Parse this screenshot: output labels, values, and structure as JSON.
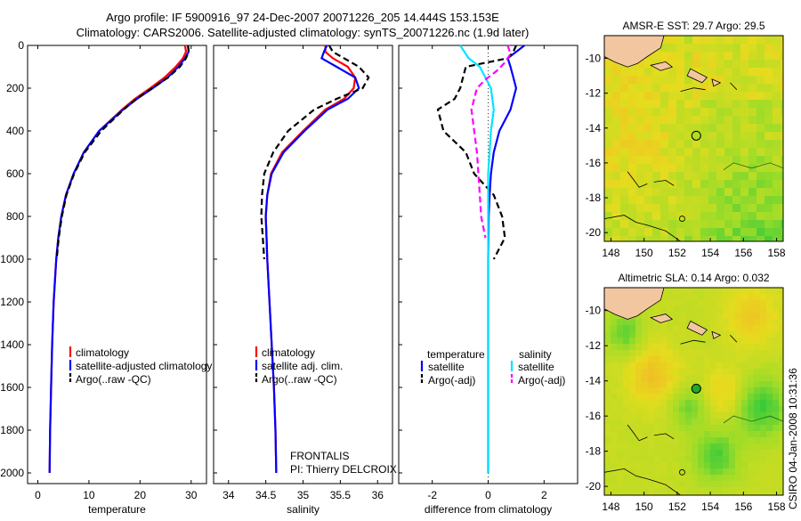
{
  "header": {
    "line1": "Argo profile: IF 5900916_97 24-Dec-2007 20071226_205 14.444S 153.153E",
    "line2": "Climatology: CARS2006. Satellite-adjusted climatology: synTS_20071226.nc (1.9d later)"
  },
  "footer_right": "CSIRO 04-Jan-2008 10:31:36",
  "colors": {
    "clim": "#ff0000",
    "sat": "#0000ff",
    "argo": "#000000",
    "sal_sat": "#00e5ff",
    "sal_argo": "#ff00ff"
  },
  "chart_data": [
    {
      "id": "temperature",
      "type": "line",
      "title": "",
      "xlabel": "temperature",
      "ylabel": "",
      "xlim": [
        -2,
        33
      ],
      "ylim": [
        0,
        2050
      ],
      "xticks": [
        "0",
        "10",
        "20",
        "30"
      ],
      "xtick_values": [
        0,
        10,
        20,
        30
      ],
      "yticks": [
        "0",
        "200",
        "400",
        "600",
        "800",
        "1000",
        "1200",
        "1400",
        "1600",
        "1800",
        "2000"
      ],
      "ytick_values": [
        0,
        200,
        400,
        600,
        800,
        1000,
        1200,
        1400,
        1600,
        1800,
        2000
      ],
      "legend": [
        "climatology",
        "satellite-adjusted climatology",
        "Argo(..raw -QC)"
      ],
      "series": [
        {
          "name": "climatology",
          "color": "#ff0000",
          "dash": "",
          "depth": [
            0,
            30,
            60,
            100,
            150,
            200,
            250,
            300,
            400,
            500,
            600,
            700,
            800,
            900,
            1000,
            1200,
            1400,
            1600,
            1800,
            2000
          ],
          "values": [
            28.8,
            29.0,
            28.4,
            27.0,
            24.8,
            22.0,
            19.0,
            16.5,
            12.0,
            9.0,
            7.0,
            5.5,
            4.6,
            4.0,
            3.6,
            3.1,
            2.8,
            2.6,
            2.4,
            2.3
          ]
        },
        {
          "name": "satellite-adjusted climatology",
          "color": "#0000ff",
          "dash": "",
          "depth": [
            0,
            30,
            60,
            100,
            150,
            200,
            250,
            300,
            400,
            500,
            600,
            700,
            800,
            900,
            1000,
            1200,
            1400,
            1600,
            1800,
            2000
          ],
          "values": [
            29.4,
            29.5,
            28.8,
            27.5,
            25.4,
            22.5,
            19.4,
            16.7,
            12.0,
            9.0,
            7.0,
            5.5,
            4.6,
            4.0,
            3.6,
            3.1,
            2.8,
            2.6,
            2.4,
            2.3
          ]
        },
        {
          "name": "Argo(..raw -QC)",
          "color": "#000000",
          "dash": "7,4",
          "depth": [
            0,
            30,
            60,
            100,
            150,
            200,
            250,
            300,
            400,
            500,
            600,
            700,
            800,
            900,
            1000
          ],
          "values": [
            29.4,
            29.5,
            29.0,
            27.8,
            25.5,
            22.4,
            19.3,
            16.8,
            12.4,
            9.2,
            7.1,
            5.6,
            4.7,
            4.1,
            3.7
          ]
        }
      ]
    },
    {
      "id": "salinity",
      "type": "line",
      "title": "",
      "xlabel": "salinity",
      "ylabel": "",
      "xlim": [
        33.8,
        36.2
      ],
      "ylim": [
        0,
        2050
      ],
      "xticks": [
        "34",
        "34.5",
        "35",
        "35.5",
        "36"
      ],
      "xtick_values": [
        34,
        34.5,
        35,
        35.5,
        36
      ],
      "yticks": [],
      "ytick_values": [],
      "legend": [
        "climatology",
        "satellite adj. clim.",
        "Argo(..raw -QC)"
      ],
      "annotation": [
        "FRONTALIS",
        "PI: Thierry DELCROIX"
      ],
      "series": [
        {
          "name": "climatology",
          "color": "#ff0000",
          "dash": "",
          "depth": [
            0,
            30,
            60,
            100,
            150,
            200,
            250,
            300,
            400,
            500,
            600,
            700,
            800,
            900,
            1000,
            1200,
            1400,
            1600,
            1800,
            2000
          ],
          "values": [
            35.3,
            35.3,
            35.4,
            35.6,
            35.7,
            35.68,
            35.55,
            35.3,
            35.0,
            34.72,
            34.57,
            34.52,
            34.5,
            34.51,
            34.52,
            34.55,
            34.58,
            34.61,
            34.63,
            34.64
          ]
        },
        {
          "name": "satellite adj. clim.",
          "color": "#0000ff",
          "dash": "",
          "depth": [
            0,
            30,
            60,
            100,
            150,
            200,
            250,
            300,
            400,
            500,
            600,
            700,
            800,
            900,
            1000,
            1200,
            1400,
            1600,
            1800,
            2000
          ],
          "values": [
            35.32,
            35.28,
            35.25,
            35.45,
            35.7,
            35.75,
            35.6,
            35.33,
            35.02,
            34.74,
            34.58,
            34.52,
            34.5,
            34.51,
            34.52,
            34.55,
            34.58,
            34.61,
            34.63,
            34.64
          ]
        },
        {
          "name": "Argo(..raw -QC)",
          "color": "#000000",
          "dash": "7,4",
          "depth": [
            0,
            30,
            60,
            100,
            150,
            200,
            250,
            300,
            400,
            500,
            600,
            700,
            800,
            900,
            1000
          ],
          "values": [
            35.35,
            35.4,
            35.55,
            35.75,
            35.88,
            35.8,
            35.45,
            35.15,
            34.8,
            34.6,
            34.48,
            34.45,
            34.44,
            34.46,
            34.48
          ]
        }
      ]
    },
    {
      "id": "difference",
      "type": "line",
      "title": "",
      "xlabel": "difference from climatology",
      "ylabel": "",
      "xlim": [
        -3.2,
        3.2
      ],
      "ylim": [
        0,
        2050
      ],
      "xticks": [
        "-2",
        "0",
        "2"
      ],
      "xtick_values": [
        -2,
        0,
        2
      ],
      "yticks": [],
      "ytick_values": [],
      "legend_groups": [
        "temperature",
        "salinity"
      ],
      "legend": [
        "satellite",
        "Argo(-adj)",
        "satellite",
        "Argo(-adj)"
      ],
      "series": [
        {
          "name": "temperature satellite",
          "color": "#0000ff",
          "dash": "",
          "depth": [
            0,
            30,
            60,
            100,
            150,
            200,
            300,
            400,
            500,
            600,
            700,
            800,
            1000,
            1500,
            2000
          ],
          "values": [
            1.3,
            1.0,
            0.7,
            0.8,
            0.9,
            1.0,
            0.8,
            0.4,
            0.2,
            0.1,
            0.05,
            0.02,
            0.0,
            0.0,
            0.0
          ]
        },
        {
          "name": "temperature Argo(-adj)",
          "color": "#000000",
          "dash": "7,4",
          "depth": [
            0,
            30,
            60,
            100,
            150,
            200,
            250,
            300,
            400,
            450,
            500,
            600,
            700,
            800,
            900,
            1000
          ],
          "values": [
            1.0,
            0.9,
            0.7,
            -0.8,
            -0.9,
            -1.0,
            -1.2,
            -1.8,
            -1.6,
            -1.2,
            -0.8,
            -0.5,
            0.2,
            0.5,
            0.6,
            0.2
          ]
        },
        {
          "name": "salinity satellite",
          "color": "#00e5ff",
          "dash": "",
          "depth": [
            0,
            60,
            100,
            150,
            200,
            300,
            400,
            500,
            600,
            800,
            1000,
            1500,
            2000
          ],
          "values": [
            -1.0,
            -0.7,
            -0.3,
            -0.1,
            0.1,
            0.2,
            0.1,
            0.05,
            0.0,
            0.0,
            0.0,
            0.0,
            0.0
          ]
        },
        {
          "name": "salinity Argo(-adj)",
          "color": "#ff00ff",
          "dash": "7,4",
          "depth": [
            0,
            40,
            80,
            120,
            160,
            200,
            300,
            400,
            500,
            600,
            700,
            800,
            900
          ],
          "values": [
            0.7,
            0.8,
            0.6,
            0.3,
            -0.1,
            -0.4,
            -0.6,
            -0.5,
            -0.4,
            -0.35,
            -0.3,
            -0.25,
            -0.1
          ]
        }
      ]
    },
    {
      "id": "sst_map",
      "type": "heatmap",
      "title": "AMSR-E SST: 29.7  Argo: 29.5",
      "xticks": [
        "148",
        "150",
        "152",
        "154",
        "156",
        "158"
      ],
      "yticks": [
        "-10",
        "-12",
        "-14",
        "-16",
        "-18",
        "-20"
      ],
      "xlim": [
        147.6,
        158.4
      ],
      "ylim": [
        -20.5,
        -8.7
      ],
      "marker": {
        "lon": 153.15,
        "lat": -14.44
      },
      "marker2": {
        "lon": 152.3,
        "lat": -19.2
      }
    },
    {
      "id": "sla_map",
      "type": "heatmap",
      "title": "Altimetric SLA: 0.14  Argo: 0.032",
      "xticks": [
        "148",
        "150",
        "152",
        "154",
        "156",
        "158"
      ],
      "yticks": [
        "-10",
        "-12",
        "-14",
        "-16",
        "-18",
        "-20"
      ],
      "xlim": [
        147.6,
        158.4
      ],
      "ylim": [
        -20.5,
        -8.7
      ],
      "marker": {
        "lon": 153.15,
        "lat": -14.44
      },
      "marker2": {
        "lon": 152.3,
        "lat": -19.2
      }
    }
  ]
}
